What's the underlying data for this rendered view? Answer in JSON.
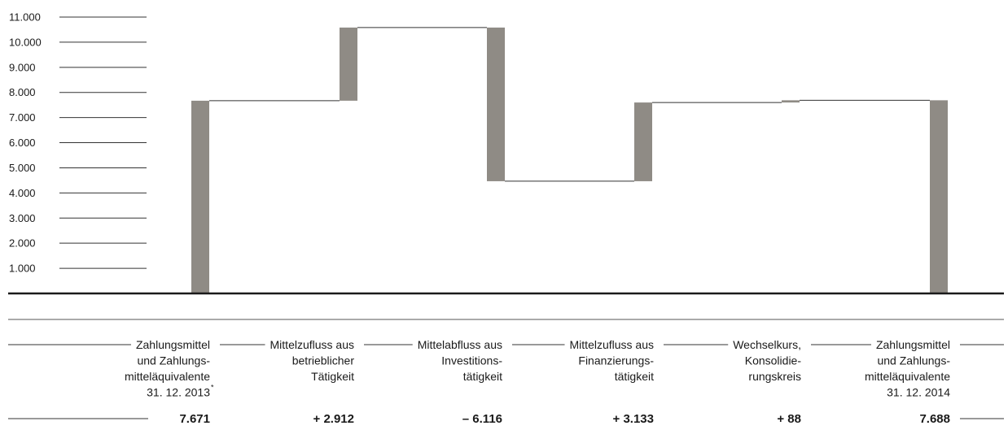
{
  "chart_data": {
    "type": "bar",
    "subtype": "waterfall",
    "ylim": [
      0,
      11000
    ],
    "yticks": [
      {
        "value": 1000,
        "label": "1.000"
      },
      {
        "value": 2000,
        "label": "2.000"
      },
      {
        "value": 3000,
        "label": "3.000"
      },
      {
        "value": 4000,
        "label": "4.000"
      },
      {
        "value": 5000,
        "label": "5.000"
      },
      {
        "value": 6000,
        "label": "6.000"
      },
      {
        "value": 7000,
        "label": "7.000"
      },
      {
        "value": 8000,
        "label": "8.000"
      },
      {
        "value": 9000,
        "label": "9.000"
      },
      {
        "value": 10000,
        "label": "10.000"
      },
      {
        "value": 11000,
        "label": "11.000"
      }
    ],
    "bar_color": "#8f8b85",
    "steps": [
      {
        "lines": [
          "Zahlungsmittel",
          "und Zahlungs-",
          "mitteläquivalente",
          "31. 12. 2013"
        ],
        "footnote_mark": "*",
        "value_label": "7.671",
        "start": 0,
        "end": 7671
      },
      {
        "lines": [
          "Mittelzufluss aus",
          "betrieblicher",
          "Tätigkeit"
        ],
        "value_label": "+ 2.912",
        "start": 7671,
        "end": 10583
      },
      {
        "lines": [
          "Mittelabfluss aus",
          "Investitions-",
          "tätigkeit"
        ],
        "value_label": "– 6.116",
        "start": 10583,
        "end": 4467
      },
      {
        "lines": [
          "Mittelzufluss aus",
          "Finanzierungs-",
          "tätigkeit"
        ],
        "value_label": "+ 3.133",
        "start": 4467,
        "end": 7600
      },
      {
        "lines": [
          "Wechselkurs,",
          "Konsolidie-",
          "rungskreis"
        ],
        "value_label": "+ 88",
        "start": 7600,
        "end": 7688
      },
      {
        "lines": [
          "Zahlungsmittel",
          "und Zahlungs-",
          "mitteläquivalente",
          "31. 12. 2014"
        ],
        "value_label": "7.688",
        "start": 0,
        "end": 7688
      }
    ]
  }
}
